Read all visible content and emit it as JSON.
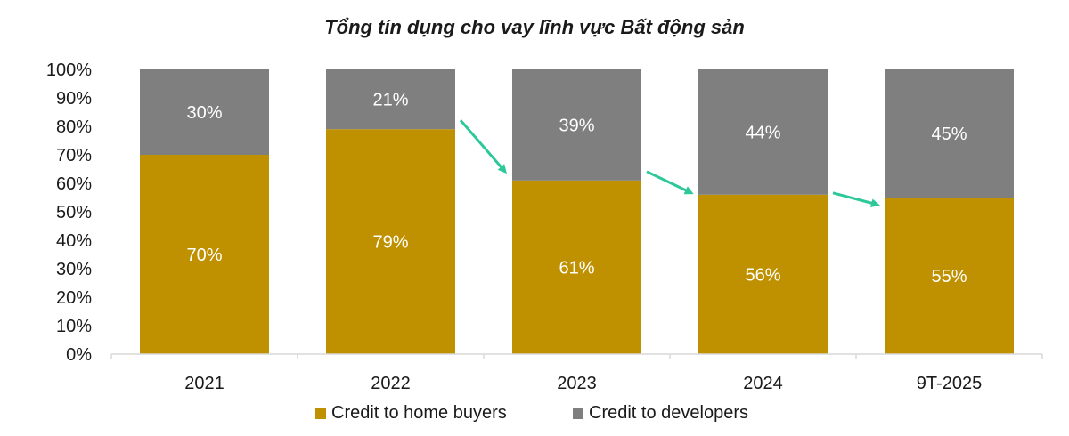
{
  "colors": {
    "home_buyers": "#BF9000",
    "developers": "#7F7F7F",
    "arrow": "#2DC89A",
    "axis": "#D9D9D9",
    "text": "#1a1a1a",
    "label_on_bar": "#ffffff"
  },
  "legend": {
    "home_buyers_label": "Credit to home buyers",
    "developers_label": "Credit to developers"
  },
  "chart_data": {
    "type": "bar",
    "stacked": true,
    "title": "Tổng tín dụng cho vay lĩnh vực Bất động sản",
    "xlabel": "",
    "ylabel": "",
    "categories": [
      "2021",
      "2022",
      "2023",
      "2024",
      "9T-2025"
    ],
    "ylim": [
      0,
      100
    ],
    "yticks": [
      "0%",
      "10%",
      "20%",
      "30%",
      "40%",
      "50%",
      "60%",
      "70%",
      "80%",
      "90%",
      "100%"
    ],
    "series": [
      {
        "name": "Credit to home buyers",
        "values": [
          70,
          79,
          61,
          56,
          55
        ],
        "labels": [
          "70%",
          "79%",
          "61%",
          "56%",
          "55%"
        ]
      },
      {
        "name": "Credit to developers",
        "values": [
          30,
          21,
          39,
          44,
          45
        ],
        "labels": [
          "30%",
          "21%",
          "39%",
          "44%",
          "45%"
        ]
      }
    ],
    "annotations": "trend arrows between 2022→2023, 2023→2024, 2024→9T-2025 on home-buyer share",
    "legend_position": "bottom",
    "grid": false
  }
}
